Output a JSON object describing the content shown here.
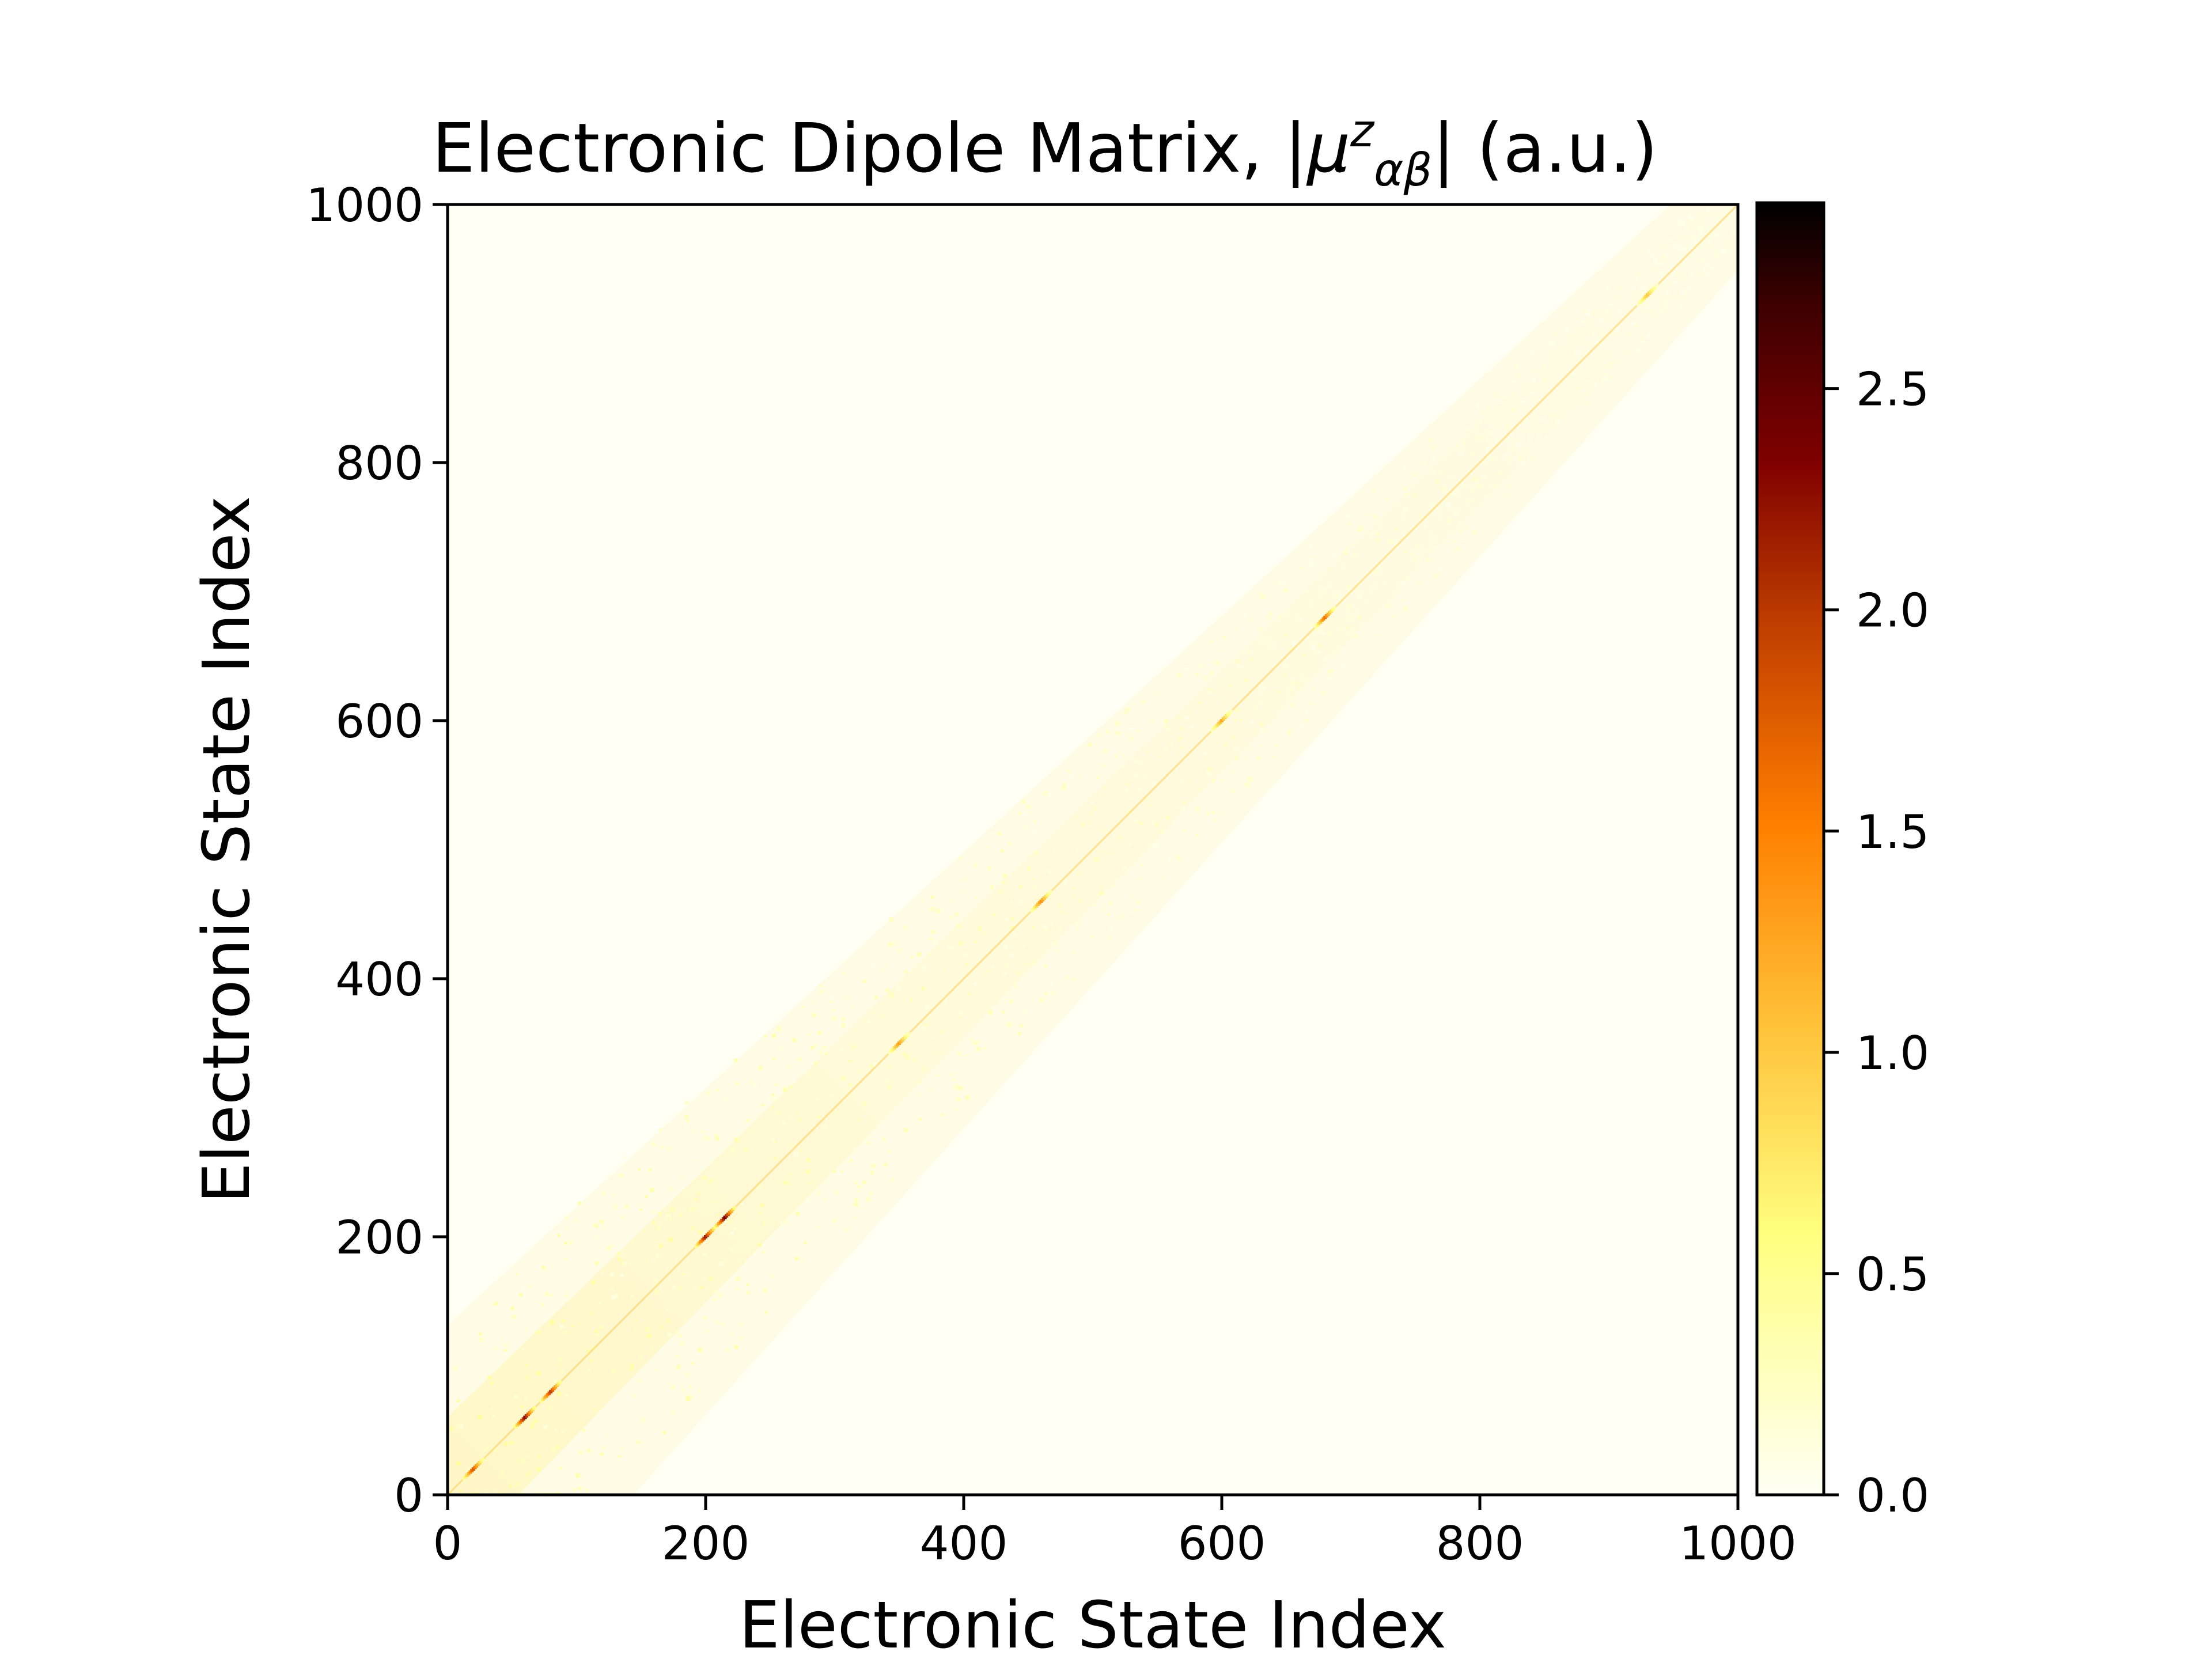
{
  "chart_data": {
    "type": "heatmap",
    "title_main": "Electronic Dipole Matrix, |",
    "title_mu": "μ",
    "title_sup": "z",
    "title_sub": "αβ",
    "title_tail": "| (a.u.)",
    "xlabel": "Electronic State Index",
    "ylabel": "Electronic State Index",
    "xlim": [
      0,
      1000
    ],
    "ylim": [
      0,
      1000
    ],
    "x_ticks": [
      0,
      200,
      400,
      600,
      800,
      1000
    ],
    "y_ticks": [
      0,
      200,
      400,
      600,
      800,
      1000
    ],
    "x_tick_labels": [
      "0",
      "200",
      "400",
      "600",
      "800",
      "1000"
    ],
    "y_tick_labels": [
      "0",
      "200",
      "400",
      "600",
      "800",
      "1000"
    ],
    "grid": false,
    "colormap": "afmhot_r",
    "colorbar": {
      "range": [
        0.0,
        2.92
      ],
      "ticks": [
        0.0,
        0.5,
        1.0,
        1.5,
        2.0,
        2.5
      ],
      "tick_labels": [
        "0.0",
        "0.5",
        "1.0",
        "1.5",
        "2.0",
        "2.5"
      ],
      "colors": [
        "#fffff5",
        "#ffff80",
        "#ffbb33",
        "#ff7f00",
        "#bd3b00",
        "#7f0000",
        "#3e0000",
        "#000000"
      ]
    },
    "matrix_size": [
      1000,
      1000
    ],
    "description_values": {
      "off_diagonal_typical": 0.05,
      "near_diagonal_band_typical": 0.2,
      "diagonal_peak_states": [
        {
          "index": 20,
          "value": 1.8
        },
        {
          "index": 60,
          "value": 2.3
        },
        {
          "index": 80,
          "value": 2.0
        },
        {
          "index": 200,
          "value": 2.2
        },
        {
          "index": 215,
          "value": 2.4
        },
        {
          "index": 350,
          "value": 1.3
        },
        {
          "index": 460,
          "value": 1.4
        },
        {
          "index": 600,
          "value": 1.2
        },
        {
          "index": 680,
          "value": 1.6
        },
        {
          "index": 930,
          "value": 1.0
        }
      ]
    }
  }
}
